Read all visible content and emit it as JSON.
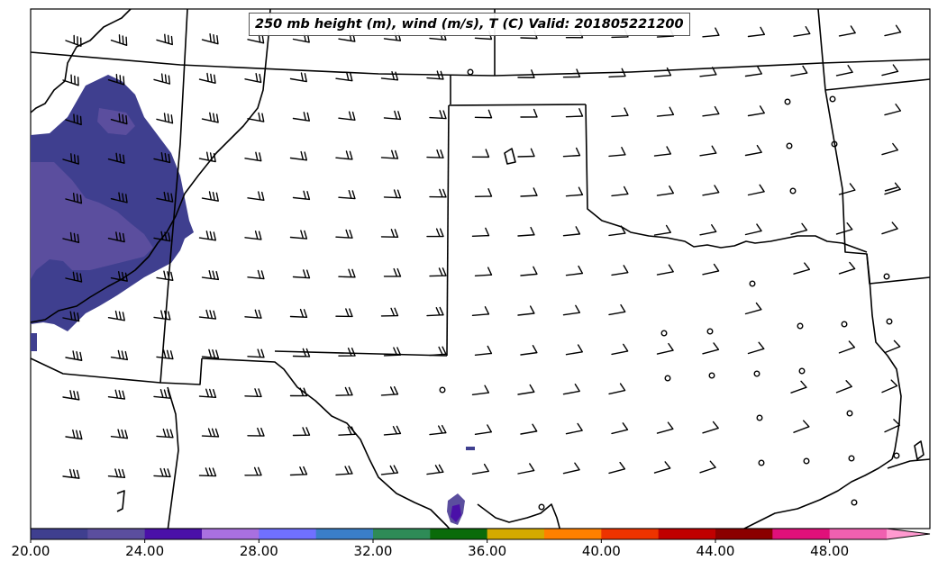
{
  "title": "250 mb height (m), wind (m/s), T (C) Valid: 201805221200",
  "colorbar": {
    "tick_labels": [
      "20.00",
      "24.00",
      "28.00",
      "32.00",
      "36.00",
      "40.00",
      "44.00",
      "48.00"
    ],
    "tick_values": [
      20,
      24,
      28,
      32,
      36,
      40,
      44,
      48
    ],
    "min": 20,
    "max": 51.5,
    "step": 2,
    "colors": [
      "#3f3f8f",
      "#5b4e9e",
      "#4a10a8",
      "#a970e0",
      "#7070ff",
      "#3a7ec8",
      "#2e8b57",
      "#0a6b0a",
      "#d4aa00",
      "#ff8000",
      "#ee3300",
      "#c00000",
      "#8b0000",
      "#e0107a",
      "#f060b0",
      "#ff9ad0"
    ]
  },
  "legend": {
    "colors": {
      "border": "#000000",
      "temperature_fill": "#3f3f8f",
      "temperature_fill_light": "#5b4e9e",
      "temperature_fill_dark_core": "#4a10a8"
    }
  }
}
